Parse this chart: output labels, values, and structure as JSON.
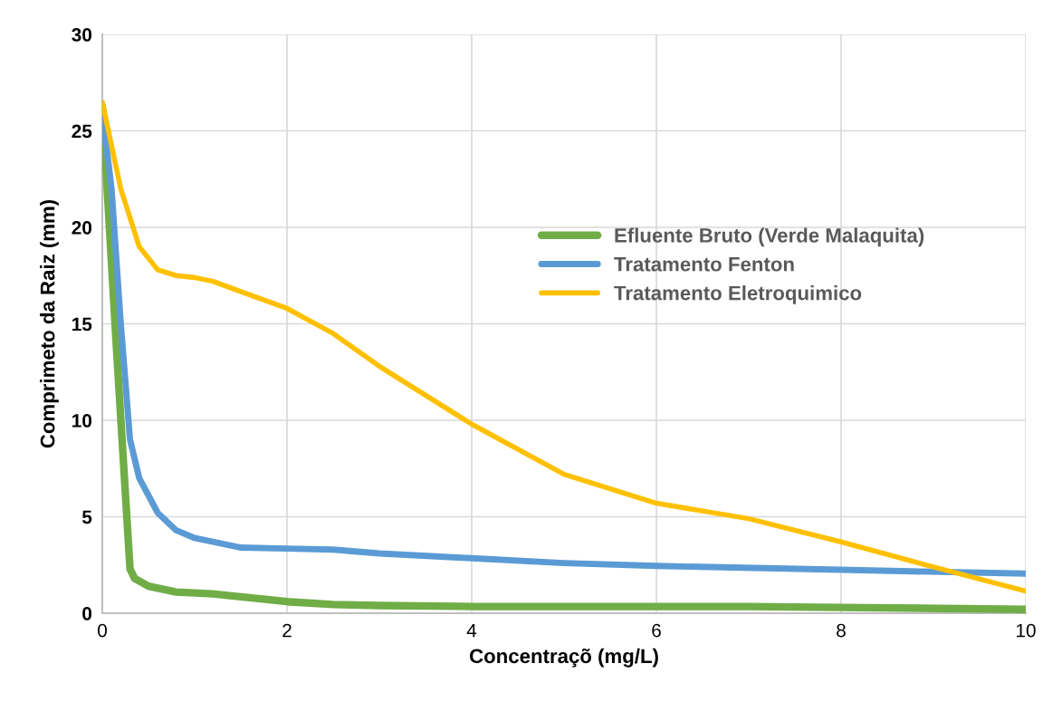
{
  "chart_data": {
    "type": "line",
    "xlabel": "Concentraçõ (mg/L)",
    "ylabel": "Comprimeto da Raiz (mm)",
    "xlim": [
      0,
      10
    ],
    "xticks": [
      0,
      2,
      4,
      6,
      8,
      10
    ],
    "ylim": [
      0,
      30
    ],
    "yticks": [
      0,
      5,
      10,
      15,
      20,
      25,
      30
    ],
    "grid": true,
    "legend": "right",
    "marker": "none",
    "line_style": "solid",
    "series": [
      {
        "name": "Efluente Bruto (Verde Malaquita)",
        "color": "#70ad47",
        "x": [
          0,
          0.15,
          0.3,
          0.35,
          0.5,
          0.8,
          1.2,
          1.6,
          2,
          2.5,
          3,
          4,
          6,
          7,
          8,
          10
        ],
        "values": [
          26.3,
          14,
          2.3,
          1.8,
          1.4,
          1.1,
          1.0,
          0.8,
          0.6,
          0.45,
          0.4,
          0.35,
          0.35,
          0.35,
          0.3,
          0.2
        ]
      },
      {
        "name": "Tratamento Fenton",
        "color": "#5b9bd5",
        "x": [
          0,
          0.1,
          0.2,
          0.3,
          0.4,
          0.6,
          0.8,
          1,
          1.5,
          2,
          2.5,
          3,
          4,
          5,
          6,
          8,
          10
        ],
        "values": [
          26,
          22,
          15,
          9,
          7,
          5.2,
          4.3,
          3.9,
          3.4,
          3.35,
          3.3,
          3.1,
          2.85,
          2.6,
          2.45,
          2.25,
          2.05
        ]
      },
      {
        "name": "Tratamento Eletroquimico",
        "color": "#ffc000",
        "x": [
          0,
          0.2,
          0.4,
          0.6,
          0.8,
          1,
          1.2,
          1.6,
          2,
          2.5,
          3,
          4,
          5,
          6,
          7,
          8,
          9,
          10
        ],
        "values": [
          26.5,
          22,
          19,
          17.8,
          17.5,
          17.4,
          17.2,
          16.5,
          15.8,
          14.5,
          12.8,
          9.8,
          7.2,
          5.7,
          4.9,
          3.7,
          2.4,
          1.15
        ]
      }
    ]
  }
}
